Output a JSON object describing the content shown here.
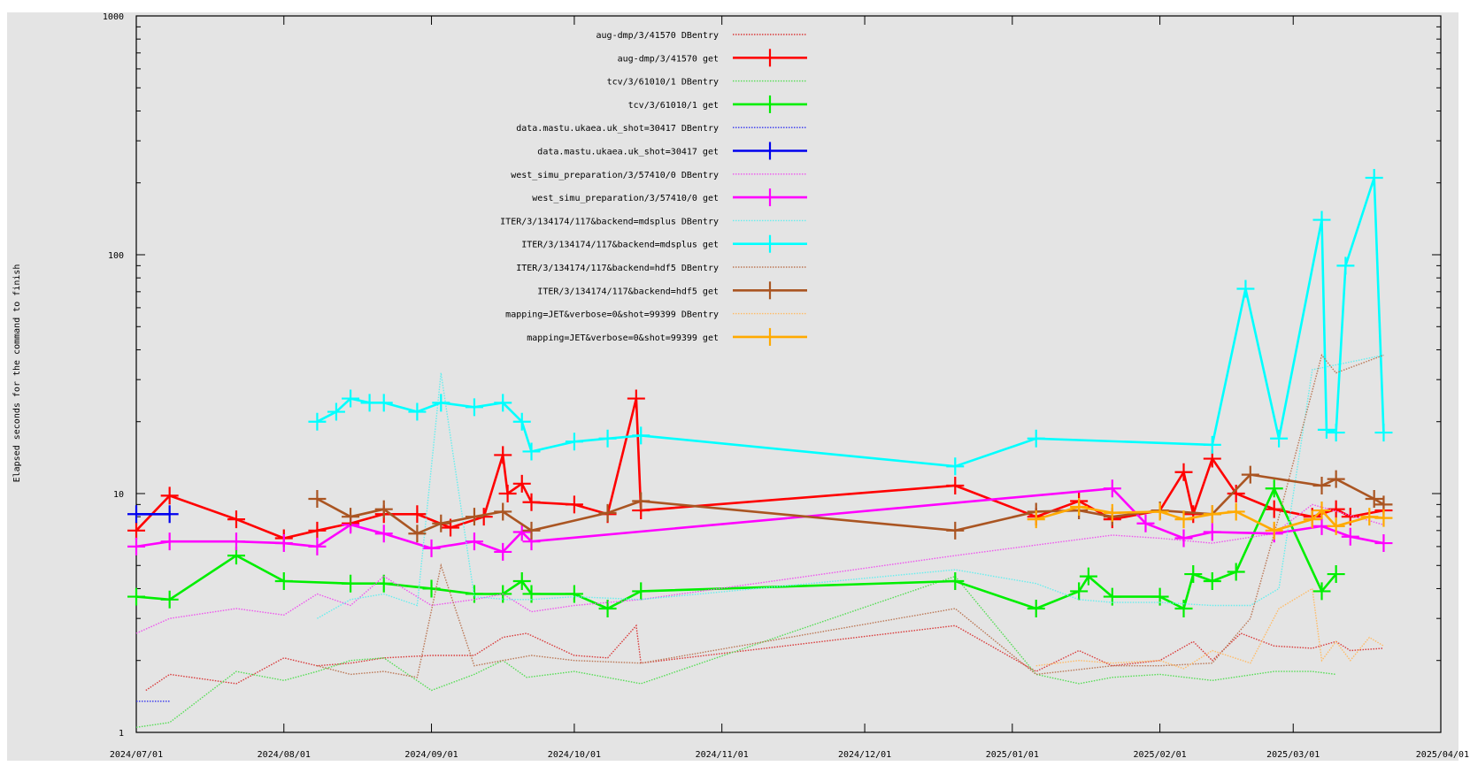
{
  "chart_data": {
    "type": "line",
    "title": "",
    "xlabel": "",
    "ylabel": "Elapsed seconds for the command to finish",
    "y_scale": "log",
    "ylim": [
      1,
      1000
    ],
    "xlim": [
      "2024-07-01",
      "2025-04-01"
    ],
    "x_ticks": [
      "2024/07/01",
      "2024/08/01",
      "2024/09/01",
      "2024/10/01",
      "2024/11/01",
      "2024/12/01",
      "2025/01/01",
      "2025/02/01",
      "2025/03/01",
      "2025/04/01"
    ],
    "y_ticks": [
      "1",
      "10",
      "100",
      "1000"
    ],
    "grid": false,
    "legend_position": "top-center",
    "series": [
      {
        "name": "aug-dmp/3/41570 DBentry",
        "style": "dotted",
        "color": "#d93a3a",
        "x": [
          "2024-07-03",
          "2024-07-08",
          "2024-07-22",
          "2024-08-01",
          "2024-08-08",
          "2024-08-15",
          "2024-08-22",
          "2024-09-01",
          "2024-09-10",
          "2024-09-16",
          "2024-09-21",
          "2024-10-01",
          "2024-10-08",
          "2024-10-14",
          "2024-10-15",
          "2024-12-20",
          "2025-01-06",
          "2025-01-15",
          "2025-01-22",
          "2025-02-01",
          "2025-02-08",
          "2025-02-12",
          "2025-02-18",
          "2025-02-25",
          "2025-03-05",
          "2025-03-10",
          "2025-03-13",
          "2025-03-20"
        ],
        "y": [
          1.5,
          1.75,
          1.6,
          2.05,
          1.9,
          1.95,
          2.05,
          2.1,
          2.1,
          2.5,
          2.6,
          2.1,
          2.05,
          2.8,
          1.95,
          2.8,
          1.8,
          2.2,
          1.9,
          2.0,
          2.4,
          2.0,
          2.6,
          2.3,
          2.25,
          2.4,
          2.2,
          2.25
        ]
      },
      {
        "name": "aug-dmp/3/41570 get",
        "style": "solid",
        "color": "#ff0000",
        "x": [
          "2024-07-01",
          "2024-07-08",
          "2024-07-22",
          "2024-08-01",
          "2024-08-08",
          "2024-08-15",
          "2024-08-22",
          "2024-08-29",
          "2024-09-05",
          "2024-09-12",
          "2024-09-16",
          "2024-09-17",
          "2024-09-20",
          "2024-09-22",
          "2024-10-01",
          "2024-10-08",
          "2024-10-14",
          "2024-10-15",
          "2024-12-20",
          "2025-01-06",
          "2025-01-15",
          "2025-01-22",
          "2025-02-01",
          "2025-02-06",
          "2025-02-08",
          "2025-02-12",
          "2025-02-17",
          "2025-02-25",
          "2025-03-05",
          "2025-03-10",
          "2025-03-13",
          "2025-03-20"
        ],
        "y": [
          7.0,
          9.8,
          7.8,
          6.5,
          7.0,
          7.5,
          8.2,
          8.2,
          7.2,
          8.0,
          14.5,
          10,
          11,
          9.2,
          9.0,
          8.2,
          25,
          8.5,
          10.8,
          8.0,
          9.3,
          7.8,
          8.5,
          12.3,
          8.2,
          14,
          10,
          8.6,
          8.0,
          8.6,
          8.0,
          8.5
        ]
      },
      {
        "name": "tcv/3/61010/1 DBentry",
        "style": "dotted",
        "color": "#55dd55",
        "x": [
          "2024-07-01",
          "2024-07-08",
          "2024-07-22",
          "2024-08-01",
          "2024-08-08",
          "2024-08-15",
          "2024-08-22",
          "2024-09-01",
          "2024-09-10",
          "2024-09-16",
          "2024-09-21",
          "2024-10-01",
          "2024-10-15",
          "2024-12-20",
          "2025-01-06",
          "2025-01-15",
          "2025-01-22",
          "2025-02-01",
          "2025-02-12",
          "2025-02-25",
          "2025-03-05",
          "2025-03-10"
        ],
        "y": [
          1.05,
          1.1,
          1.8,
          1.65,
          1.8,
          2.0,
          2.05,
          1.5,
          1.75,
          2.0,
          1.7,
          1.8,
          1.6,
          4.5,
          1.75,
          1.6,
          1.7,
          1.75,
          1.65,
          1.8,
          1.8,
          1.75
        ]
      },
      {
        "name": "tcv/3/61010/1 get",
        "style": "solid",
        "color": "#00ee00",
        "x": [
          "2024-07-01",
          "2024-07-08",
          "2024-07-22",
          "2024-08-01",
          "2024-08-15",
          "2024-08-22",
          "2024-09-01",
          "2024-09-10",
          "2024-09-16",
          "2024-09-20",
          "2024-09-22",
          "2024-10-01",
          "2024-10-08",
          "2024-10-15",
          "2024-12-20",
          "2025-01-06",
          "2025-01-15",
          "2025-01-17",
          "2025-01-22",
          "2025-02-01",
          "2025-02-06",
          "2025-02-08",
          "2025-02-12",
          "2025-02-17",
          "2025-02-25",
          "2025-03-07",
          "2025-03-10"
        ],
        "y": [
          3.7,
          3.6,
          5.5,
          4.3,
          4.2,
          4.2,
          4.0,
          3.8,
          3.8,
          4.3,
          3.8,
          3.8,
          3.3,
          3.9,
          4.3,
          3.3,
          3.9,
          4.5,
          3.7,
          3.7,
          3.3,
          4.6,
          4.3,
          4.7,
          10.5,
          3.9,
          4.6
        ]
      },
      {
        "name": "data.mastu.ukaea.uk_shot=30417 DBentry",
        "style": "dotted",
        "color": "#3333ee",
        "x": [
          "2024-07-01",
          "2024-07-08"
        ],
        "y": [
          1.35,
          1.35
        ]
      },
      {
        "name": "data.mastu.ukaea.uk_shot=30417 get",
        "style": "solid",
        "color": "#0000ee",
        "x": [
          "2024-07-01",
          "2024-07-08"
        ],
        "y": [
          8.2,
          8.2
        ]
      },
      {
        "name": "west_simu_preparation/3/57410/0 DBentry",
        "style": "dotted",
        "color": "#ee55ee",
        "x": [
          "2024-07-01",
          "2024-07-08",
          "2024-07-22",
          "2024-08-01",
          "2024-08-08",
          "2024-08-15",
          "2024-08-22",
          "2024-09-01",
          "2024-09-10",
          "2024-09-16",
          "2024-09-22",
          "2024-10-01",
          "2024-10-15",
          "2024-12-20",
          "2025-01-22",
          "2025-02-01",
          "2025-02-12",
          "2025-02-25",
          "2025-03-05",
          "2025-03-20"
        ],
        "y": [
          2.6,
          3.0,
          3.3,
          3.1,
          3.8,
          3.4,
          4.5,
          3.4,
          3.6,
          3.8,
          3.2,
          3.4,
          3.6,
          5.5,
          6.7,
          6.5,
          6.2,
          6.8,
          9,
          7.4
        ]
      },
      {
        "name": "west_simu_preparation/3/57410/0 get",
        "style": "solid",
        "color": "#ff00ff",
        "x": [
          "2024-07-01",
          "2024-07-08",
          "2024-07-22",
          "2024-08-01",
          "2024-08-08",
          "2024-08-15",
          "2024-08-22",
          "2024-09-01",
          "2024-09-10",
          "2024-09-16",
          "2024-09-20",
          "2024-09-22",
          "2025-01-22",
          "2025-01-29",
          "2025-02-06",
          "2025-02-12",
          "2025-02-25",
          "2025-03-07",
          "2025-03-13",
          "2025-03-20"
        ],
        "y": [
          6.0,
          6.3,
          6.3,
          6.2,
          6.0,
          7.4,
          6.8,
          5.9,
          6.3,
          5.7,
          6.9,
          6.3,
          10.5,
          7.5,
          6.5,
          6.9,
          6.8,
          7.3,
          6.6,
          6.2
        ]
      },
      {
        "name": "ITER/3/134174/117&backend=mdsplus DBentry",
        "style": "dotted",
        "color": "#66eeee",
        "x": [
          "2024-08-08",
          "2024-08-15",
          "2024-08-22",
          "2024-08-29",
          "2024-09-03",
          "2024-09-10",
          "2024-09-17",
          "2024-09-22",
          "2024-10-01",
          "2024-10-15",
          "2024-12-20",
          "2025-01-06",
          "2025-01-15",
          "2025-01-22",
          "2025-02-01",
          "2025-02-12",
          "2025-02-20",
          "2025-02-26",
          "2025-03-05",
          "2025-03-20"
        ],
        "y": [
          3.0,
          3.6,
          3.8,
          3.4,
          32,
          3.7,
          3.6,
          3.6,
          3.7,
          3.6,
          4.8,
          4.2,
          3.6,
          3.5,
          3.5,
          3.4,
          3.4,
          4,
          33,
          38
        ]
      },
      {
        "name": "ITER/3/134174/117&backend=mdsplus get",
        "style": "solid",
        "color": "#00ffff",
        "x": [
          "2024-08-08",
          "2024-08-12",
          "2024-08-15",
          "2024-08-19",
          "2024-08-22",
          "2024-08-29",
          "2024-09-03",
          "2024-09-10",
          "2024-09-16",
          "2024-09-20",
          "2024-09-22",
          "2024-10-01",
          "2024-10-08",
          "2024-10-15",
          "2024-12-20",
          "2025-01-06",
          "2025-02-12",
          "2025-02-19",
          "2025-02-26",
          "2025-03-07",
          "2025-03-08",
          "2025-03-10",
          "2025-03-12",
          "2025-03-18",
          "2025-03-20"
        ],
        "y": [
          20,
          22,
          25,
          24,
          24,
          22,
          24,
          23,
          24,
          20,
          15,
          16.5,
          17,
          17.5,
          13,
          17,
          16,
          72,
          17,
          140,
          18.5,
          18,
          90,
          210,
          18
        ]
      },
      {
        "name": "ITER/3/134174/117&backend=hdf5 DBentry",
        "style": "dotted",
        "color": "#bb7755",
        "x": [
          "2024-08-08",
          "2024-08-15",
          "2024-08-22",
          "2024-08-29",
          "2024-09-03",
          "2024-09-10",
          "2024-09-16",
          "2024-09-22",
          "2024-10-01",
          "2024-10-15",
          "2024-12-20",
          "2025-01-06",
          "2025-01-22",
          "2025-02-01",
          "2025-02-12",
          "2025-02-20",
          "2025-02-26",
          "2025-03-07",
          "2025-03-10",
          "2025-03-20"
        ],
        "y": [
          1.9,
          1.75,
          1.8,
          1.7,
          5,
          1.9,
          2.0,
          2.1,
          2.0,
          1.95,
          3.3,
          1.75,
          1.9,
          1.9,
          1.95,
          3,
          8,
          38,
          32,
          38
        ]
      },
      {
        "name": "ITER/3/134174/117&backend=hdf5 get",
        "style": "solid",
        "color": "#aa5522",
        "x": [
          "2024-08-08",
          "2024-08-15",
          "2024-08-22",
          "2024-08-29",
          "2024-09-03",
          "2024-09-10",
          "2024-09-16",
          "2024-09-22",
          "2024-10-08",
          "2024-10-15",
          "2024-12-20",
          "2025-01-06",
          "2025-01-15",
          "2025-01-22",
          "2025-02-01",
          "2025-02-12",
          "2025-02-20",
          "2025-03-07",
          "2025-03-10",
          "2025-03-18",
          "2025-03-20"
        ],
        "y": [
          9.5,
          8.0,
          8.6,
          6.8,
          7.5,
          8.0,
          8.4,
          7.0,
          8.3,
          9.3,
          7.0,
          8.4,
          8.5,
          8.0,
          8.5,
          8.2,
          12,
          10.8,
          11.5,
          9.5,
          9.0
        ]
      },
      {
        "name": "mapping=JET&verbose=0&shot=99399 DBentry",
        "style": "dotted",
        "color": "#ffbb66",
        "x": [
          "2025-01-06",
          "2025-01-15",
          "2025-01-22",
          "2025-02-01",
          "2025-02-06",
          "2025-02-12",
          "2025-02-20",
          "2025-02-26",
          "2025-03-05",
          "2025-03-07",
          "2025-03-10",
          "2025-03-13",
          "2025-03-17",
          "2025-03-20"
        ],
        "y": [
          1.9,
          2.0,
          1.95,
          2.0,
          1.85,
          2.2,
          1.95,
          3.3,
          4.0,
          2.0,
          2.4,
          2.0,
          2.5,
          2.3
        ]
      },
      {
        "name": "mapping=JET&verbose=0&shot=99399 get",
        "style": "solid",
        "color": "#ffaa00",
        "x": [
          "2025-01-06",
          "2025-01-15",
          "2025-01-22",
          "2025-02-01",
          "2025-02-06",
          "2025-02-12",
          "2025-02-17",
          "2025-02-25",
          "2025-03-05",
          "2025-03-07",
          "2025-03-10",
          "2025-03-17",
          "2025-03-20"
        ],
        "y": [
          7.8,
          8.8,
          8.3,
          8.4,
          7.8,
          8.2,
          8.4,
          7.0,
          7.8,
          8.5,
          7.3,
          8.0,
          7.9
        ]
      }
    ]
  }
}
